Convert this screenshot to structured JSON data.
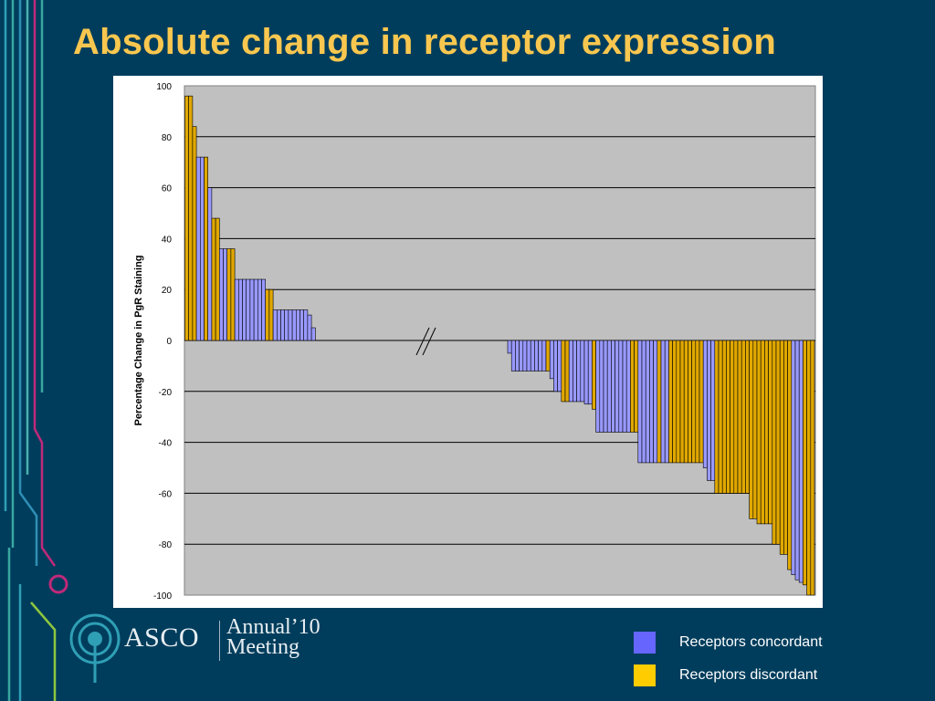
{
  "slide": {
    "title": "Absolute change in receptor expression"
  },
  "logo": {
    "brand": "ASCO",
    "annual": "Annual’10",
    "meeting": "Meeting"
  },
  "legend": [
    {
      "label": "Receptors concordant",
      "color": "#6666ff"
    },
    {
      "label": "Receptors discordant",
      "color": "#ffcc00"
    }
  ],
  "colors": {
    "background": "#003d5c",
    "title": "#f9c74f",
    "plot_area": "#c0c0c0",
    "bar_concordant": "#9999ff",
    "bar_discordant": "#e0a800"
  },
  "chart_data": {
    "type": "bar",
    "title": "",
    "xlabel": "",
    "ylabel": "Percentage Change in PgR Staining",
    "ylim": [
      -100,
      100
    ],
    "yticks": [
      100,
      80,
      60,
      40,
      20,
      0,
      -20,
      -40,
      -60,
      -80,
      -100
    ],
    "grid": true,
    "axis_break": true,
    "series": [
      {
        "name": "Receptors concordant",
        "color": "#9999ff"
      },
      {
        "name": "Receptors discordant",
        "color": "#e0a800"
      }
    ],
    "positive_bars": [
      {
        "v": 96,
        "s": "discordant"
      },
      {
        "v": 96,
        "s": "discordant"
      },
      {
        "v": 84,
        "s": "discordant"
      },
      {
        "v": 72,
        "s": "concordant"
      },
      {
        "v": 72,
        "s": "concordant"
      },
      {
        "v": 72,
        "s": "discordant"
      },
      {
        "v": 60,
        "s": "concordant"
      },
      {
        "v": 48,
        "s": "discordant"
      },
      {
        "v": 48,
        "s": "discordant"
      },
      {
        "v": 36,
        "s": "concordant"
      },
      {
        "v": 36,
        "s": "concordant"
      },
      {
        "v": 36,
        "s": "discordant"
      },
      {
        "v": 36,
        "s": "discordant"
      },
      {
        "v": 24,
        "s": "concordant"
      },
      {
        "v": 24,
        "s": "concordant"
      },
      {
        "v": 24,
        "s": "concordant"
      },
      {
        "v": 24,
        "s": "concordant"
      },
      {
        "v": 24,
        "s": "concordant"
      },
      {
        "v": 24,
        "s": "concordant"
      },
      {
        "v": 24,
        "s": "concordant"
      },
      {
        "v": 24,
        "s": "concordant"
      },
      {
        "v": 20,
        "s": "discordant"
      },
      {
        "v": 20,
        "s": "discordant"
      },
      {
        "v": 12,
        "s": "concordant"
      },
      {
        "v": 12,
        "s": "concordant"
      },
      {
        "v": 12,
        "s": "concordant"
      },
      {
        "v": 12,
        "s": "concordant"
      },
      {
        "v": 12,
        "s": "concordant"
      },
      {
        "v": 12,
        "s": "concordant"
      },
      {
        "v": 12,
        "s": "concordant"
      },
      {
        "v": 12,
        "s": "concordant"
      },
      {
        "v": 12,
        "s": "concordant"
      },
      {
        "v": 10,
        "s": "concordant"
      },
      {
        "v": 5,
        "s": "concordant"
      }
    ],
    "negative_bars": [
      {
        "v": -5,
        "s": "concordant"
      },
      {
        "v": -12,
        "s": "concordant"
      },
      {
        "v": -12,
        "s": "concordant"
      },
      {
        "v": -12,
        "s": "concordant"
      },
      {
        "v": -12,
        "s": "concordant"
      },
      {
        "v": -12,
        "s": "concordant"
      },
      {
        "v": -12,
        "s": "concordant"
      },
      {
        "v": -12,
        "s": "concordant"
      },
      {
        "v": -12,
        "s": "concordant"
      },
      {
        "v": -12,
        "s": "concordant"
      },
      {
        "v": -12,
        "s": "discordant"
      },
      {
        "v": -15,
        "s": "concordant"
      },
      {
        "v": -20,
        "s": "concordant"
      },
      {
        "v": -20,
        "s": "concordant"
      },
      {
        "v": -24,
        "s": "discordant"
      },
      {
        "v": -24,
        "s": "discordant"
      },
      {
        "v": -24,
        "s": "concordant"
      },
      {
        "v": -24,
        "s": "concordant"
      },
      {
        "v": -24,
        "s": "concordant"
      },
      {
        "v": -24,
        "s": "concordant"
      },
      {
        "v": -25,
        "s": "concordant"
      },
      {
        "v": -25,
        "s": "concordant"
      },
      {
        "v": -27,
        "s": "discordant"
      },
      {
        "v": -36,
        "s": "concordant"
      },
      {
        "v": -36,
        "s": "concordant"
      },
      {
        "v": -36,
        "s": "concordant"
      },
      {
        "v": -36,
        "s": "concordant"
      },
      {
        "v": -36,
        "s": "concordant"
      },
      {
        "v": -36,
        "s": "concordant"
      },
      {
        "v": -36,
        "s": "concordant"
      },
      {
        "v": -36,
        "s": "concordant"
      },
      {
        "v": -36,
        "s": "concordant"
      },
      {
        "v": -36,
        "s": "discordant"
      },
      {
        "v": -36,
        "s": "discordant"
      },
      {
        "v": -48,
        "s": "concordant"
      },
      {
        "v": -48,
        "s": "concordant"
      },
      {
        "v": -48,
        "s": "concordant"
      },
      {
        "v": -48,
        "s": "concordant"
      },
      {
        "v": -48,
        "s": "concordant"
      },
      {
        "v": -48,
        "s": "discordant"
      },
      {
        "v": -48,
        "s": "concordant"
      },
      {
        "v": -48,
        "s": "concordant"
      },
      {
        "v": -48,
        "s": "discordant"
      },
      {
        "v": -48,
        "s": "discordant"
      },
      {
        "v": -48,
        "s": "discordant"
      },
      {
        "v": -48,
        "s": "discordant"
      },
      {
        "v": -48,
        "s": "discordant"
      },
      {
        "v": -48,
        "s": "discordant"
      },
      {
        "v": -48,
        "s": "discordant"
      },
      {
        "v": -48,
        "s": "discordant"
      },
      {
        "v": -48,
        "s": "discordant"
      },
      {
        "v": -50,
        "s": "concordant"
      },
      {
        "v": -55,
        "s": "concordant"
      },
      {
        "v": -55,
        "s": "concordant"
      },
      {
        "v": -60,
        "s": "discordant"
      },
      {
        "v": -60,
        "s": "discordant"
      },
      {
        "v": -60,
        "s": "discordant"
      },
      {
        "v": -60,
        "s": "discordant"
      },
      {
        "v": -60,
        "s": "discordant"
      },
      {
        "v": -60,
        "s": "discordant"
      },
      {
        "v": -60,
        "s": "discordant"
      },
      {
        "v": -60,
        "s": "discordant"
      },
      {
        "v": -60,
        "s": "discordant"
      },
      {
        "v": -70,
        "s": "discordant"
      },
      {
        "v": -70,
        "s": "discordant"
      },
      {
        "v": -72,
        "s": "discordant"
      },
      {
        "v": -72,
        "s": "discordant"
      },
      {
        "v": -72,
        "s": "discordant"
      },
      {
        "v": -72,
        "s": "discordant"
      },
      {
        "v": -80,
        "s": "discordant"
      },
      {
        "v": -80,
        "s": "discordant"
      },
      {
        "v": -84,
        "s": "discordant"
      },
      {
        "v": -84,
        "s": "discordant"
      },
      {
        "v": -90,
        "s": "discordant"
      },
      {
        "v": -92,
        "s": "concordant"
      },
      {
        "v": -94,
        "s": "concordant"
      },
      {
        "v": -95,
        "s": "concordant"
      },
      {
        "v": -96,
        "s": "discordant"
      },
      {
        "v": -100,
        "s": "discordant"
      },
      {
        "v": -100,
        "s": "discordant"
      }
    ]
  }
}
